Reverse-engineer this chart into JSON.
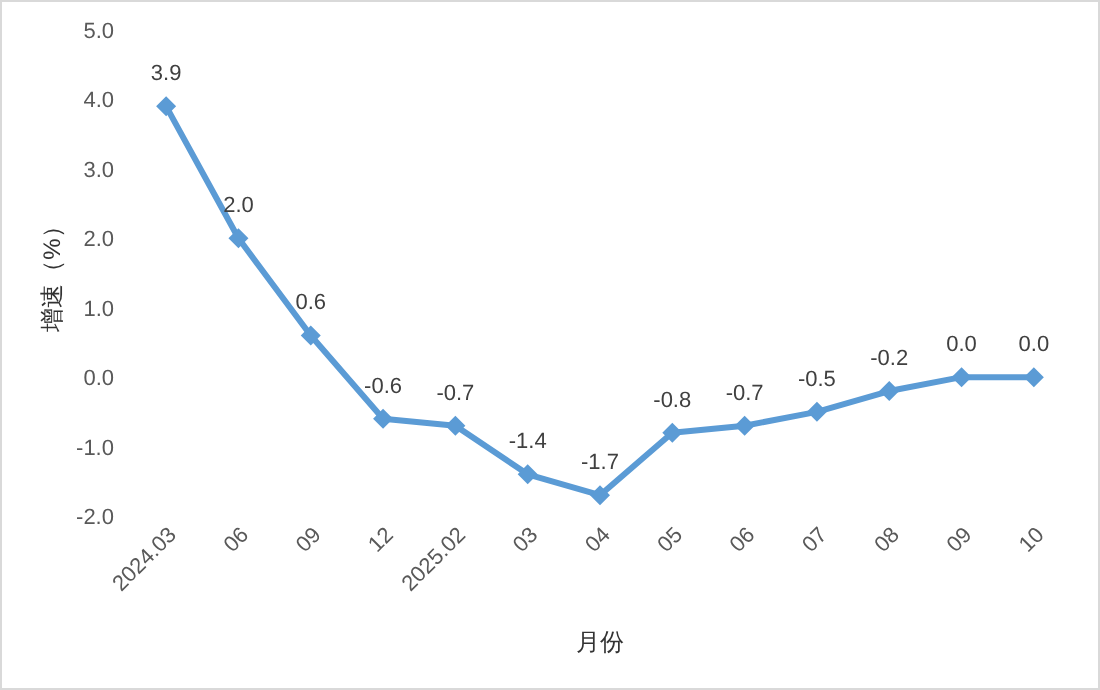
{
  "chart_data": {
    "type": "line",
    "xlabel": "月份",
    "ylabel": "增速（%）",
    "categories": [
      "2024.03",
      "06",
      "09",
      "12",
      "2025.02",
      "03",
      "04",
      "05",
      "06",
      "07",
      "08",
      "09",
      "10"
    ],
    "values": [
      3.9,
      2.0,
      0.6,
      -0.6,
      -0.7,
      -1.4,
      -1.7,
      -0.8,
      -0.7,
      -0.5,
      -0.2,
      0.0,
      0.0
    ],
    "value_labels": [
      "3.9",
      "2.0",
      "0.6",
      "-0.6",
      "-0.7",
      "-1.4",
      "-1.7",
      "-0.8",
      "-0.7",
      "-0.5",
      "-0.2",
      "0.0",
      "0.0"
    ],
    "color": "#5b9bd5",
    "marker": "diamond",
    "grid": false,
    "ylim": [
      -2,
      5
    ],
    "yticks": [
      {
        "value": -2,
        "label": "-2.0"
      },
      {
        "value": -1,
        "label": "-1.0"
      },
      {
        "value": 0,
        "label": "0.0"
      },
      {
        "value": 1,
        "label": "1.0"
      },
      {
        "value": 2,
        "label": "2.0"
      },
      {
        "value": 3,
        "label": "3.0"
      },
      {
        "value": 4,
        "label": "4.0"
      },
      {
        "value": 5,
        "label": "5.0"
      }
    ]
  }
}
